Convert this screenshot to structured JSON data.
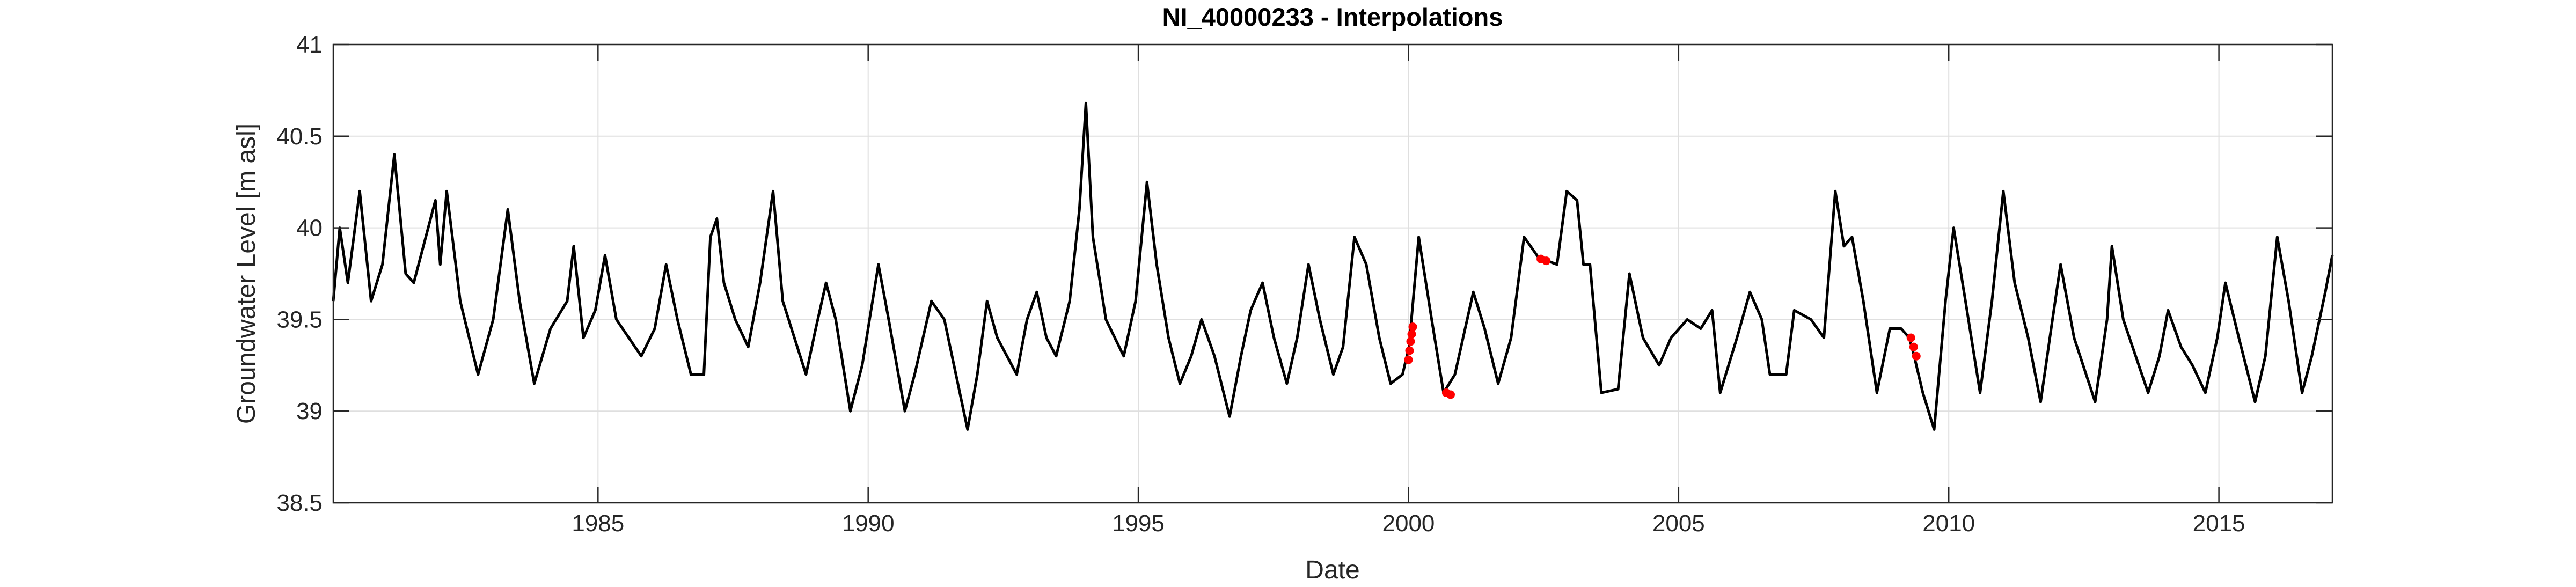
{
  "chart_data": {
    "type": "line",
    "title": "NI_40000233 - Interpolations",
    "x_label": "Date",
    "y_label": "Groundwater Level [m asl]",
    "xlim": [
      1980.1,
      2017.1
    ],
    "ylim": [
      38.5,
      41
    ],
    "xticks": [
      1985,
      1990,
      1995,
      2000,
      2005,
      2010,
      2015
    ],
    "yticks": [
      38.5,
      39,
      39.5,
      40,
      40.5,
      41
    ],
    "grid": true,
    "series": [
      {
        "type": "line",
        "color": "#000000",
        "x": [
          1980.1,
          1980.22,
          1980.37,
          1980.59,
          1980.8,
          1981.01,
          1981.23,
          1981.44,
          1981.59,
          1981.99,
          1982.08,
          1982.2,
          1982.45,
          1982.78,
          1983.06,
          1983.33,
          1983.55,
          1983.82,
          1984.12,
          1984.43,
          1984.55,
          1984.73,
          1984.95,
          1985.13,
          1985.34,
          1985.8,
          1986.05,
          1986.26,
          1986.47,
          1986.72,
          1986.96,
          1987.08,
          1987.2,
          1987.33,
          1987.54,
          1987.78,
          1988.0,
          1988.24,
          1988.42,
          1988.85,
          1989.03,
          1989.22,
          1989.4,
          1989.67,
          1989.89,
          1990.19,
          1990.38,
          1990.68,
          1990.86,
          1991.17,
          1991.41,
          1991.84,
          1992.02,
          1992.2,
          1992.39,
          1992.75,
          1992.94,
          1993.12,
          1993.3,
          1993.48,
          1993.73,
          1993.91,
          1994.03,
          1994.16,
          1994.4,
          1994.73,
          1994.95,
          1995.16,
          1995.34,
          1995.56,
          1995.77,
          1995.98,
          1996.17,
          1996.41,
          1996.69,
          1996.9,
          1997.08,
          1997.3,
          1997.51,
          1997.75,
          1997.94,
          1998.15,
          1998.36,
          1998.61,
          1998.79,
          1999.0,
          1999.22,
          1999.46,
          1999.67,
          1999.89,
          2000.01,
          2000.19,
          2000.43,
          2000.65,
          2000.86,
          2001.2,
          2001.41,
          2001.66,
          2001.9,
          2002.14,
          2002.45,
          2002.57,
          2002.75,
          2002.93,
          2003.12,
          2003.24,
          2003.36,
          2003.57,
          2003.88,
          2004.09,
          2004.34,
          2004.64,
          2004.86,
          2005.16,
          2005.41,
          2005.62,
          2005.77,
          2006.08,
          2006.32,
          2006.54,
          2006.69,
          2006.99,
          2007.14,
          2007.45,
          2007.69,
          2007.9,
          2008.06,
          2008.21,
          2008.42,
          2008.67,
          2008.91,
          2009.12,
          2009.27,
          2009.36,
          2009.52,
          2009.73,
          2009.94,
          2010.09,
          2010.31,
          2010.58,
          2010.8,
          2011.01,
          2011.22,
          2011.47,
          2011.7,
          2011.92,
          2012.07,
          2012.32,
          2012.71,
          2012.93,
          2013.02,
          2013.23,
          2013.69,
          2013.9,
          2014.06,
          2014.3,
          2014.51,
          2014.75,
          2014.97,
          2015.12,
          2015.37,
          2015.67,
          2015.86,
          2016.08,
          2016.29,
          2016.54,
          2016.72,
          2016.97,
          2017.1
        ],
        "values": [
          39.6,
          40.0,
          39.7,
          40.2,
          39.6,
          39.8,
          40.4,
          39.75,
          39.7,
          40.15,
          39.8,
          40.2,
          39.6,
          39.2,
          39.5,
          40.1,
          39.6,
          39.15,
          39.45,
          39.6,
          39.9,
          39.4,
          39.55,
          39.85,
          39.5,
          39.3,
          39.45,
          39.8,
          39.5,
          39.2,
          39.2,
          39.95,
          40.05,
          39.7,
          39.5,
          39.35,
          39.7,
          40.2,
          39.6,
          39.2,
          39.45,
          39.7,
          39.5,
          39.0,
          39.25,
          39.8,
          39.5,
          39.0,
          39.2,
          39.6,
          39.5,
          38.9,
          39.2,
          39.6,
          39.4,
          39.2,
          39.5,
          39.65,
          39.4,
          39.3,
          39.6,
          40.1,
          40.68,
          39.95,
          39.5,
          39.3,
          39.6,
          40.25,
          39.8,
          39.4,
          39.15,
          39.3,
          39.5,
          39.3,
          38.97,
          39.3,
          39.55,
          39.7,
          39.4,
          39.15,
          39.4,
          39.8,
          39.5,
          39.2,
          39.35,
          39.95,
          39.8,
          39.4,
          39.15,
          39.2,
          39.35,
          39.95,
          39.5,
          39.1,
          39.2,
          39.65,
          39.45,
          39.15,
          39.4,
          39.95,
          39.82,
          39.82,
          39.8,
          40.2,
          40.15,
          39.8,
          39.8,
          39.1,
          39.12,
          39.75,
          39.4,
          39.25,
          39.4,
          39.5,
          39.45,
          39.55,
          39.1,
          39.4,
          39.65,
          39.5,
          39.2,
          39.2,
          39.55,
          39.5,
          39.4,
          40.2,
          39.9,
          39.95,
          39.6,
          39.1,
          39.45,
          39.45,
          39.4,
          39.3,
          39.1,
          38.9,
          39.6,
          40.0,
          39.6,
          39.1,
          39.6,
          40.2,
          39.7,
          39.4,
          39.05,
          39.5,
          39.8,
          39.4,
          39.05,
          39.5,
          39.9,
          39.5,
          39.1,
          39.3,
          39.55,
          39.35,
          39.25,
          39.1,
          39.4,
          39.7,
          39.4,
          39.05,
          39.3,
          39.95,
          39.6,
          39.1,
          39.3,
          39.65,
          39.85
        ]
      },
      {
        "type": "scatter",
        "color": "#ff0000",
        "x": [
          2000.0,
          2000.02,
          2000.04,
          2000.06,
          2000.08,
          2000.7,
          2000.78,
          2002.45,
          2002.55,
          2009.3,
          2009.35,
          2009.4
        ],
        "values": [
          39.28,
          39.33,
          39.38,
          39.42,
          39.46,
          39.1,
          39.09,
          39.83,
          39.82,
          39.4,
          39.35,
          39.3
        ]
      }
    ]
  }
}
